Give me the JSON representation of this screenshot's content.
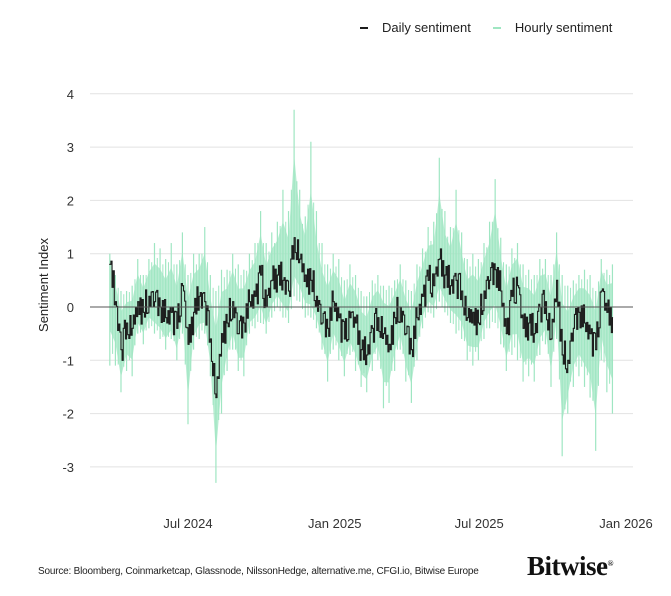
{
  "legend": {
    "daily_label": "Daily sentiment",
    "hourly_label": "Hourly sentiment"
  },
  "source": "Source: Bloomberg, Coinmarketcap, Glassnode, NilssonHedge, alternative.me, CFGI.io, Bitwise Europe",
  "logo": "Bitwise",
  "colors": {
    "daily": "#1c1c1c",
    "hourly": "#9fe6c2",
    "grid": "#e2e2e2",
    "zero_line": "#555555"
  },
  "chart_data": {
    "type": "line",
    "title": "",
    "xlabel": "",
    "ylabel": "Sentiment Index",
    "ylim": [
      -3.5,
      4
    ],
    "yticks": [
      4,
      3,
      2,
      1,
      0,
      -1,
      -2,
      -3
    ],
    "xlim": [
      "2024-02-20",
      "2026-01-20"
    ],
    "xticks": [
      {
        "date": "2024-07-01",
        "label": "Jul 2024"
      },
      {
        "date": "2025-01-01",
        "label": "Jan 2025"
      },
      {
        "date": "2025-07-01",
        "label": "Jul 2025"
      },
      {
        "date": "2026-01-01",
        "label": "Jan 2026"
      }
    ],
    "grid": true,
    "legend_position": "top-right",
    "x": [
      "2024-03-25",
      "2024-04-01",
      "2024-04-08",
      "2024-04-15",
      "2024-04-22",
      "2024-04-29",
      "2024-05-06",
      "2024-05-13",
      "2024-05-20",
      "2024-05-27",
      "2024-06-03",
      "2024-06-10",
      "2024-06-17",
      "2024-06-24",
      "2024-07-01",
      "2024-07-08",
      "2024-07-15",
      "2024-07-22",
      "2024-07-29",
      "2024-08-05",
      "2024-08-12",
      "2024-08-19",
      "2024-08-26",
      "2024-09-02",
      "2024-09-09",
      "2024-09-16",
      "2024-09-23",
      "2024-09-30",
      "2024-10-07",
      "2024-10-14",
      "2024-10-21",
      "2024-10-28",
      "2024-11-04",
      "2024-11-11",
      "2024-11-18",
      "2024-11-25",
      "2024-12-02",
      "2024-12-09",
      "2024-12-16",
      "2024-12-23",
      "2024-12-30",
      "2025-01-06",
      "2025-01-13",
      "2025-01-20",
      "2025-01-27",
      "2025-02-03",
      "2025-02-10",
      "2025-02-17",
      "2025-02-24",
      "2025-03-03",
      "2025-03-10",
      "2025-03-17",
      "2025-03-24",
      "2025-03-31",
      "2025-04-07",
      "2025-04-14",
      "2025-04-21",
      "2025-04-28",
      "2025-05-05",
      "2025-05-12",
      "2025-05-19",
      "2025-05-26",
      "2025-06-02",
      "2025-06-09",
      "2025-06-16",
      "2025-06-23",
      "2025-06-30",
      "2025-07-07",
      "2025-07-14",
      "2025-07-21",
      "2025-07-28",
      "2025-08-04",
      "2025-08-11",
      "2025-08-18",
      "2025-08-25",
      "2025-09-01",
      "2025-09-08",
      "2025-09-15",
      "2025-09-22",
      "2025-09-29",
      "2025-10-06",
      "2025-10-13",
      "2025-10-20",
      "2025-10-27",
      "2025-11-03",
      "2025-11-10",
      "2025-11-17",
      "2025-11-24",
      "2025-12-01",
      "2025-12-08",
      "2025-12-15"
    ],
    "series": [
      {
        "name": "Daily sentiment",
        "values": [
          0.8,
          0.1,
          -0.8,
          -0.3,
          -0.4,
          0.1,
          -0.1,
          0.2,
          0.1,
          0.0,
          -0.2,
          -0.1,
          -0.4,
          0.4,
          -0.7,
          -0.1,
          0.2,
          0.1,
          -0.6,
          -1.7,
          -0.5,
          -0.3,
          0.1,
          -0.5,
          -0.3,
          0.1,
          0.2,
          0.6,
          0.0,
          0.5,
          0.6,
          0.5,
          0.3,
          1.3,
          0.9,
          0.6,
          0.5,
          0.2,
          -0.3,
          -0.4,
          0.1,
          -0.2,
          -0.6,
          -0.2,
          -0.3,
          -0.8,
          -0.9,
          -0.4,
          -0.2,
          -0.5,
          -0.7,
          -0.2,
          0.0,
          -0.5,
          -0.8,
          -0.2,
          0.2,
          0.5,
          0.4,
          0.9,
          0.6,
          0.4,
          0.5,
          0.3,
          -0.2,
          -0.1,
          -0.3,
          0.3,
          0.5,
          0.7,
          0.3,
          -0.5,
          0.2,
          0.4,
          -0.4,
          -0.3,
          -0.5,
          0.0,
          0.1,
          -0.6,
          0.5,
          -0.9,
          -1.0,
          -0.4,
          -0.1,
          -0.3,
          -0.5,
          -0.8,
          0.3,
          -0.1,
          -0.2
        ]
      },
      {
        "name": "Hourly sentiment",
        "low": [
          -1.1,
          -1.1,
          -1.6,
          -1.2,
          -1.3,
          -0.5,
          -0.7,
          -0.4,
          -0.5,
          -0.6,
          -0.8,
          -0.6,
          -1.0,
          -0.5,
          -2.2,
          -0.8,
          -0.6,
          -0.5,
          -1.3,
          -3.3,
          -2.0,
          -1.2,
          -0.8,
          -1.2,
          -1.3,
          -0.5,
          -0.4,
          -0.3,
          -0.5,
          -0.2,
          0.0,
          -0.2,
          -0.3,
          0.2,
          0.1,
          -0.2,
          -0.2,
          -0.4,
          -0.8,
          -1.4,
          -0.8,
          -1.0,
          -1.3,
          -0.9,
          -1.2,
          -1.5,
          -1.6,
          -1.2,
          -1.0,
          -1.9,
          -1.8,
          -1.2,
          -0.8,
          -1.4,
          -1.8,
          -1.0,
          -0.4,
          -0.1,
          -0.2,
          0.1,
          -0.1,
          -0.3,
          -0.5,
          -0.6,
          -1.0,
          -1.1,
          -1.0,
          -0.6,
          -0.4,
          -0.3,
          -0.7,
          -1.2,
          -0.9,
          -1.0,
          -1.4,
          -1.3,
          -1.4,
          -0.9,
          -0.7,
          -1.5,
          -0.6,
          -2.8,
          -2.0,
          -1.5,
          -1.3,
          -1.5,
          -1.7,
          -2.7,
          -1.0,
          -1.6,
          -2.0
        ],
        "high": [
          1.0,
          0.6,
          0.3,
          0.3,
          0.4,
          0.9,
          0.6,
          0.9,
          1.2,
          1.1,
          0.9,
          1.2,
          0.8,
          1.4,
          0.6,
          1.0,
          1.0,
          1.5,
          0.6,
          0.3,
          0.7,
          0.7,
          1.0,
          0.8,
          0.7,
          1.0,
          1.2,
          1.8,
          1.2,
          1.4,
          1.6,
          2.2,
          1.8,
          3.7,
          2.2,
          1.7,
          3.1,
          1.8,
          1.2,
          0.8,
          1.0,
          0.9,
          0.5,
          0.8,
          0.6,
          0.3,
          0.2,
          0.5,
          0.6,
          0.4,
          0.4,
          0.5,
          0.8,
          0.5,
          0.3,
          0.8,
          1.1,
          1.5,
          1.6,
          2.8,
          1.8,
          1.5,
          2.2,
          1.4,
          0.9,
          1.0,
          0.9,
          1.2,
          1.6,
          2.4,
          1.3,
          0.8,
          1.1,
          1.2,
          0.8,
          0.7,
          0.6,
          0.9,
          0.9,
          0.6,
          1.4,
          0.6,
          0.4,
          0.5,
          0.6,
          0.7,
          0.6,
          0.3,
          0.9,
          0.7,
          0.8
        ]
      }
    ]
  }
}
